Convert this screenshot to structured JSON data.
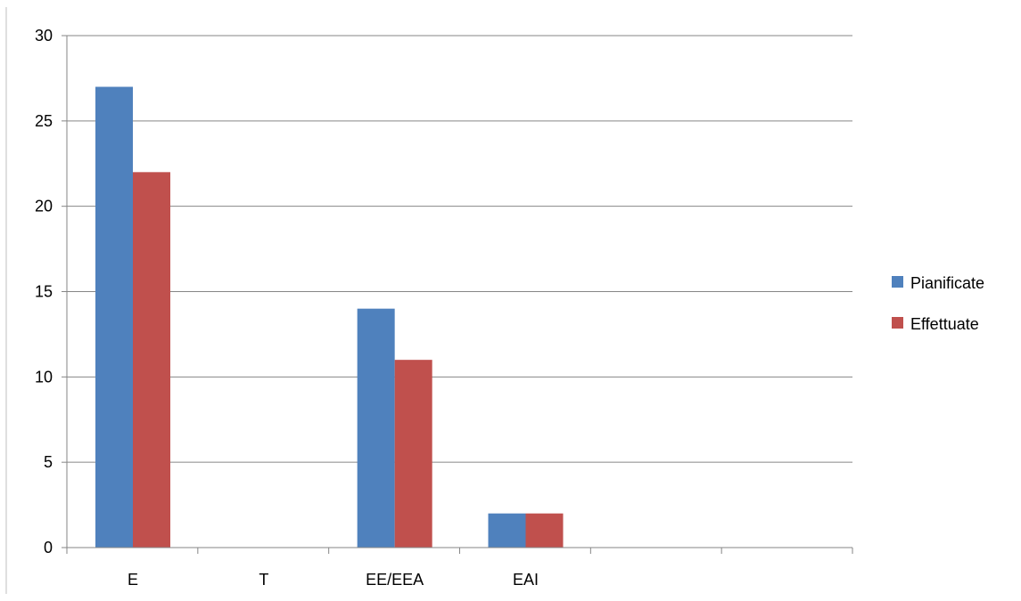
{
  "chart_data": {
    "type": "bar",
    "categories": [
      "E",
      "T",
      "EE/EEA",
      "EAI",
      "",
      ""
    ],
    "series": [
      {
        "name": "Pianificate",
        "values": [
          27,
          0,
          14,
          2,
          0,
          0
        ],
        "color": "#4F81BD"
      },
      {
        "name": "Effettuate",
        "values": [
          22,
          0,
          11,
          2,
          0,
          0
        ],
        "color": "#C0504D"
      }
    ],
    "ylim": [
      0,
      30
    ],
    "yticks": [
      0,
      5,
      10,
      15,
      20,
      25,
      30
    ],
    "grid": true,
    "legend_position": "right",
    "title": "",
    "xlabel": "",
    "ylabel": ""
  }
}
